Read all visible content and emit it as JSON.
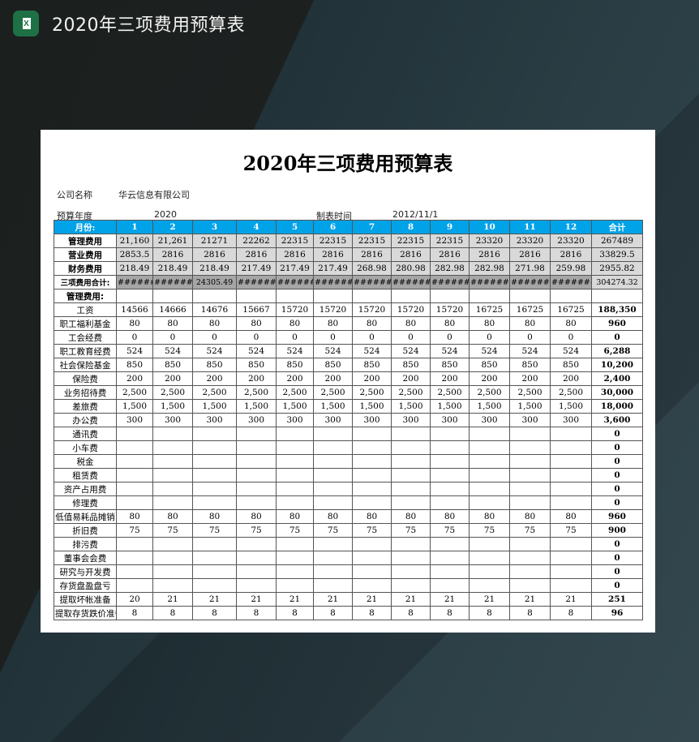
{
  "app": {
    "title": "2020年三项费用预算表",
    "icon": "excel-icon"
  },
  "sheet": {
    "title": "2020年三项费用预算表",
    "company_label": "公司名称",
    "company": "华云信息有限公司",
    "year_label": "预算年度",
    "year": "2020",
    "date_label": "制表时间",
    "date": "2012/11/1",
    "header": [
      "月份:",
      "1",
      "2",
      "3",
      "4",
      "5",
      "6",
      "7",
      "8",
      "9",
      "10",
      "11",
      "12",
      "合计"
    ],
    "colors": {
      "header": "#00a2e8",
      "summary": "#d9d9d9",
      "total": "#a6a6a6"
    },
    "summary_rows": [
      {
        "label": "管理费用",
        "values": [
          "21,160",
          "21,261",
          "21271",
          "22262",
          "22315",
          "22315",
          "22315",
          "22315",
          "22315",
          "23320",
          "23320",
          "23320"
        ],
        "total": "267489"
      },
      {
        "label": "营业费用",
        "values": [
          "2853.5",
          "2816",
          "2816",
          "2816",
          "2816",
          "2816",
          "2816",
          "2816",
          "2816",
          "2816",
          "2816",
          "2816"
        ],
        "total": "33829.5"
      },
      {
        "label": "财务费用",
        "values": [
          "218.49",
          "218.49",
          "218.49",
          "217.49",
          "217.49",
          "217.49",
          "268.98",
          "280.98",
          "282.98",
          "282.98",
          "271.98",
          "259.98"
        ],
        "total": "2955.82"
      }
    ],
    "total_row": {
      "label": "三项费用合计:",
      "values": [
        "########",
        "########",
        "24305.49",
        "########",
        "#######",
        "########",
        "########",
        "########",
        "########",
        "########",
        "########",
        "########"
      ],
      "total": "304274.32"
    },
    "section_label": "管理费用:",
    "items": [
      {
        "label": "工资",
        "values": [
          "14566",
          "14666",
          "14676",
          "15667",
          "15720",
          "15720",
          "15720",
          "15720",
          "15720",
          "16725",
          "16725",
          "16725"
        ],
        "total": "188,350"
      },
      {
        "label": "职工福利基金",
        "values": [
          "80",
          "80",
          "80",
          "80",
          "80",
          "80",
          "80",
          "80",
          "80",
          "80",
          "80",
          "80"
        ],
        "total": "960"
      },
      {
        "label": "工会经费",
        "values": [
          "0",
          "0",
          "0",
          "0",
          "0",
          "0",
          "0",
          "0",
          "0",
          "0",
          "0",
          "0"
        ],
        "total": "0"
      },
      {
        "label": "职工教育经费",
        "values": [
          "524",
          "524",
          "524",
          "524",
          "524",
          "524",
          "524",
          "524",
          "524",
          "524",
          "524",
          "524"
        ],
        "total": "6,288"
      },
      {
        "label": "社会保险基金",
        "values": [
          "850",
          "850",
          "850",
          "850",
          "850",
          "850",
          "850",
          "850",
          "850",
          "850",
          "850",
          "850"
        ],
        "total": "10,200"
      },
      {
        "label": "保险费",
        "values": [
          "200",
          "200",
          "200",
          "200",
          "200",
          "200",
          "200",
          "200",
          "200",
          "200",
          "200",
          "200"
        ],
        "total": "2,400"
      },
      {
        "label": "业务招待费",
        "values": [
          "2,500",
          "2,500",
          "2,500",
          "2,500",
          "2,500",
          "2,500",
          "2,500",
          "2,500",
          "2,500",
          "2,500",
          "2,500",
          "2,500"
        ],
        "total": "30,000"
      },
      {
        "label": "差旅费",
        "values": [
          "1,500",
          "1,500",
          "1,500",
          "1,500",
          "1,500",
          "1,500",
          "1,500",
          "1,500",
          "1,500",
          "1,500",
          "1,500",
          "1,500"
        ],
        "total": "18,000"
      },
      {
        "label": "办公费",
        "values": [
          "300",
          "300",
          "300",
          "300",
          "300",
          "300",
          "300",
          "300",
          "300",
          "300",
          "300",
          "300"
        ],
        "total": "3,600"
      },
      {
        "label": "通讯费",
        "values": [
          "",
          "",
          "",
          "",
          "",
          "",
          "",
          "",
          "",
          "",
          "",
          ""
        ],
        "total": "0"
      },
      {
        "label": "小车费",
        "values": [
          "",
          "",
          "",
          "",
          "",
          "",
          "",
          "",
          "",
          "",
          "",
          ""
        ],
        "total": "0"
      },
      {
        "label": "税金",
        "values": [
          "",
          "",
          "",
          "",
          "",
          "",
          "",
          "",
          "",
          "",
          "",
          ""
        ],
        "total": "0"
      },
      {
        "label": "租赁费",
        "values": [
          "",
          "",
          "",
          "",
          "",
          "",
          "",
          "",
          "",
          "",
          "",
          ""
        ],
        "total": "0"
      },
      {
        "label": "资产占用费",
        "values": [
          "",
          "",
          "",
          "",
          "",
          "",
          "",
          "",
          "",
          "",
          "",
          ""
        ],
        "total": "0"
      },
      {
        "label": "修理费",
        "values": [
          "",
          "",
          "",
          "",
          "",
          "",
          "",
          "",
          "",
          "",
          "",
          ""
        ],
        "total": "0"
      },
      {
        "label": "低值易耗品摊销",
        "values": [
          "80",
          "80",
          "80",
          "80",
          "80",
          "80",
          "80",
          "80",
          "80",
          "80",
          "80",
          "80"
        ],
        "total": "960"
      },
      {
        "label": "折旧费",
        "values": [
          "75",
          "75",
          "75",
          "75",
          "75",
          "75",
          "75",
          "75",
          "75",
          "75",
          "75",
          "75"
        ],
        "total": "900"
      },
      {
        "label": "排污费",
        "values": [
          "",
          "",
          "",
          "",
          "",
          "",
          "",
          "",
          "",
          "",
          "",
          ""
        ],
        "total": "0"
      },
      {
        "label": "董事会会费",
        "values": [
          "",
          "",
          "",
          "",
          "",
          "",
          "",
          "",
          "",
          "",
          "",
          ""
        ],
        "total": "0"
      },
      {
        "label": "研究与开发费",
        "values": [
          "",
          "",
          "",
          "",
          "",
          "",
          "",
          "",
          "",
          "",
          "",
          ""
        ],
        "total": "0"
      },
      {
        "label": "存货盘盈盘亏",
        "values": [
          "",
          "",
          "",
          "",
          "",
          "",
          "",
          "",
          "",
          "",
          "",
          ""
        ],
        "total": "0"
      },
      {
        "label": "提取坏帐准备",
        "values": [
          "20",
          "21",
          "21",
          "21",
          "21",
          "21",
          "21",
          "21",
          "21",
          "21",
          "21",
          "21"
        ],
        "total": "251"
      },
      {
        "label": "提取存货跌价准备",
        "values": [
          "8",
          "8",
          "8",
          "8",
          "8",
          "8",
          "8",
          "8",
          "8",
          "8",
          "8",
          "8"
        ],
        "total": "96"
      }
    ]
  }
}
